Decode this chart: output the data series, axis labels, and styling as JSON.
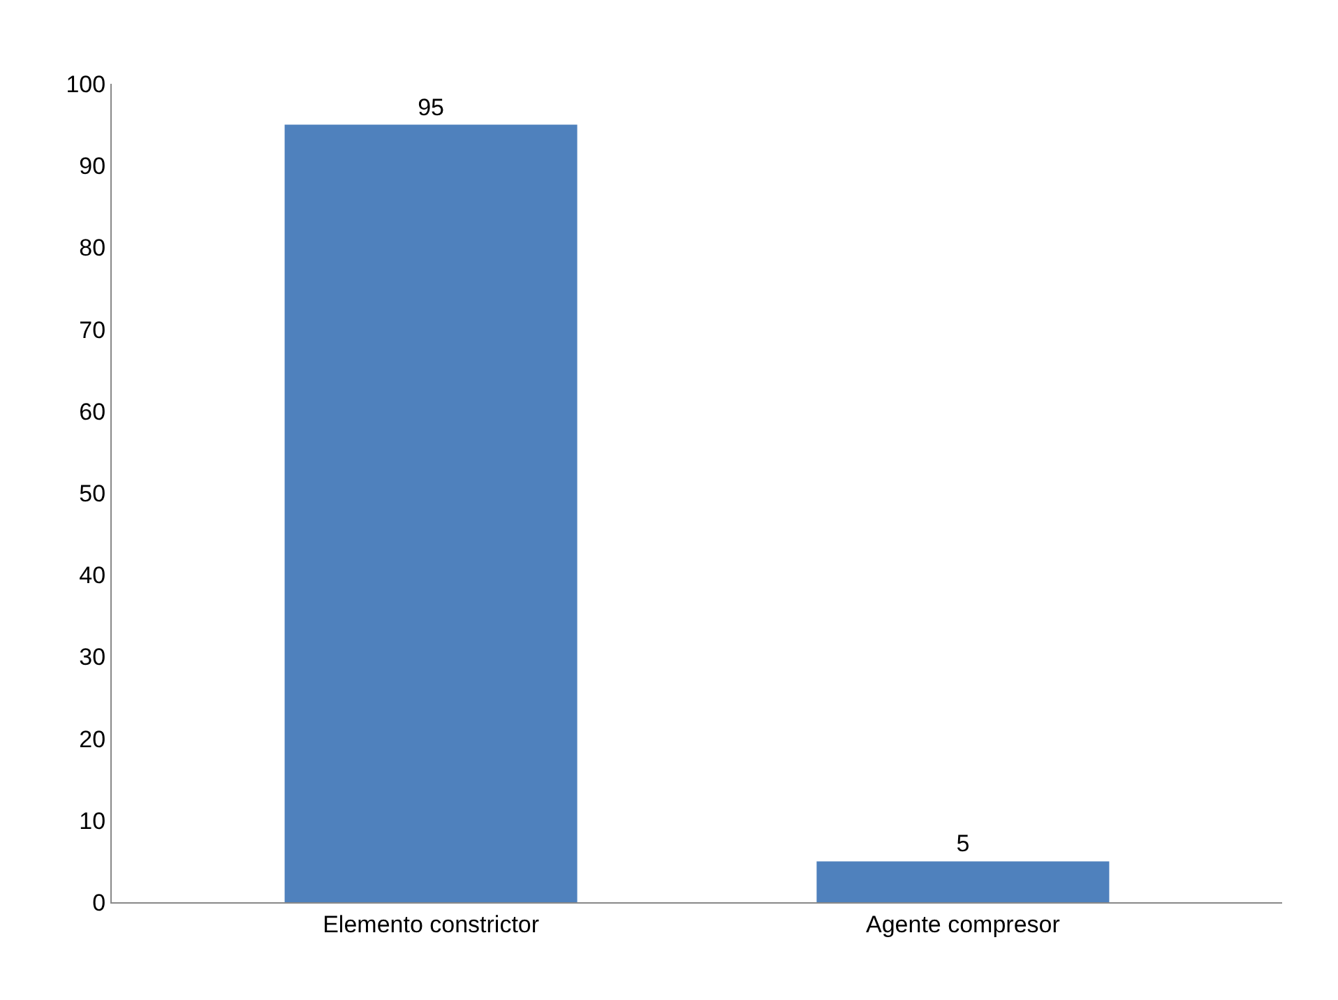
{
  "chart_data": {
    "type": "bar",
    "categories": [
      "Elemento constrictor",
      "Agente compresor"
    ],
    "values": [
      95,
      5
    ],
    "color": "#4f81bd",
    "ylim": [
      0,
      100
    ],
    "yticks": [
      0,
      10,
      20,
      30,
      40,
      50,
      60,
      70,
      80,
      90,
      100
    ],
    "grid": false,
    "data_labels": true
  }
}
